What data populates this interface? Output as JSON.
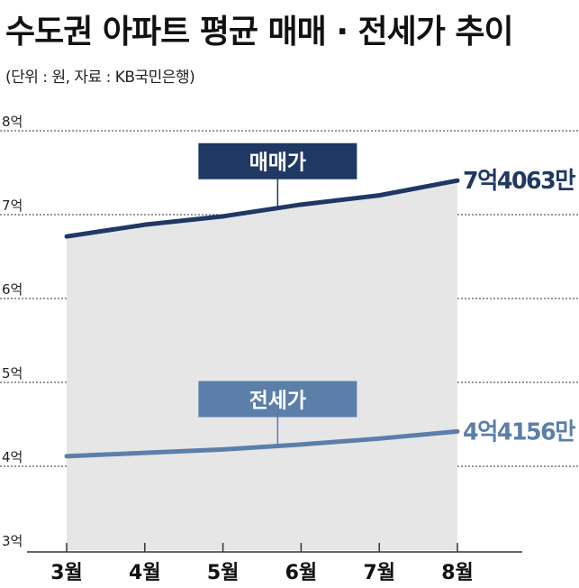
{
  "chart_data": {
    "type": "area",
    "title": "수도권 아파트 평균 매매 · 전세가 추이",
    "subtitle": "(단위 : 원,  자료 : KB국민은행)",
    "categories": [
      "3월",
      "4월",
      "5월",
      "6월",
      "7월",
      "8월"
    ],
    "y_ticks": [
      "8억",
      "7억",
      "6억",
      "5억",
      "4억",
      "3억"
    ],
    "ylim": [
      3,
      8
    ],
    "grid": true,
    "series": [
      {
        "name": "매매가",
        "values": [
          6.74,
          6.88,
          6.98,
          7.12,
          7.23,
          7.4063
        ],
        "end_label": "7억4063만",
        "color": "#1f3864"
      },
      {
        "name": "전세가",
        "values": [
          4.12,
          4.16,
          4.2,
          4.26,
          4.33,
          4.4156
        ],
        "end_label": "4억4156만",
        "color": "#5b7fa9"
      }
    ],
    "area_fill": "#e6e6e6",
    "legend_placement": "inline-above-lines"
  }
}
